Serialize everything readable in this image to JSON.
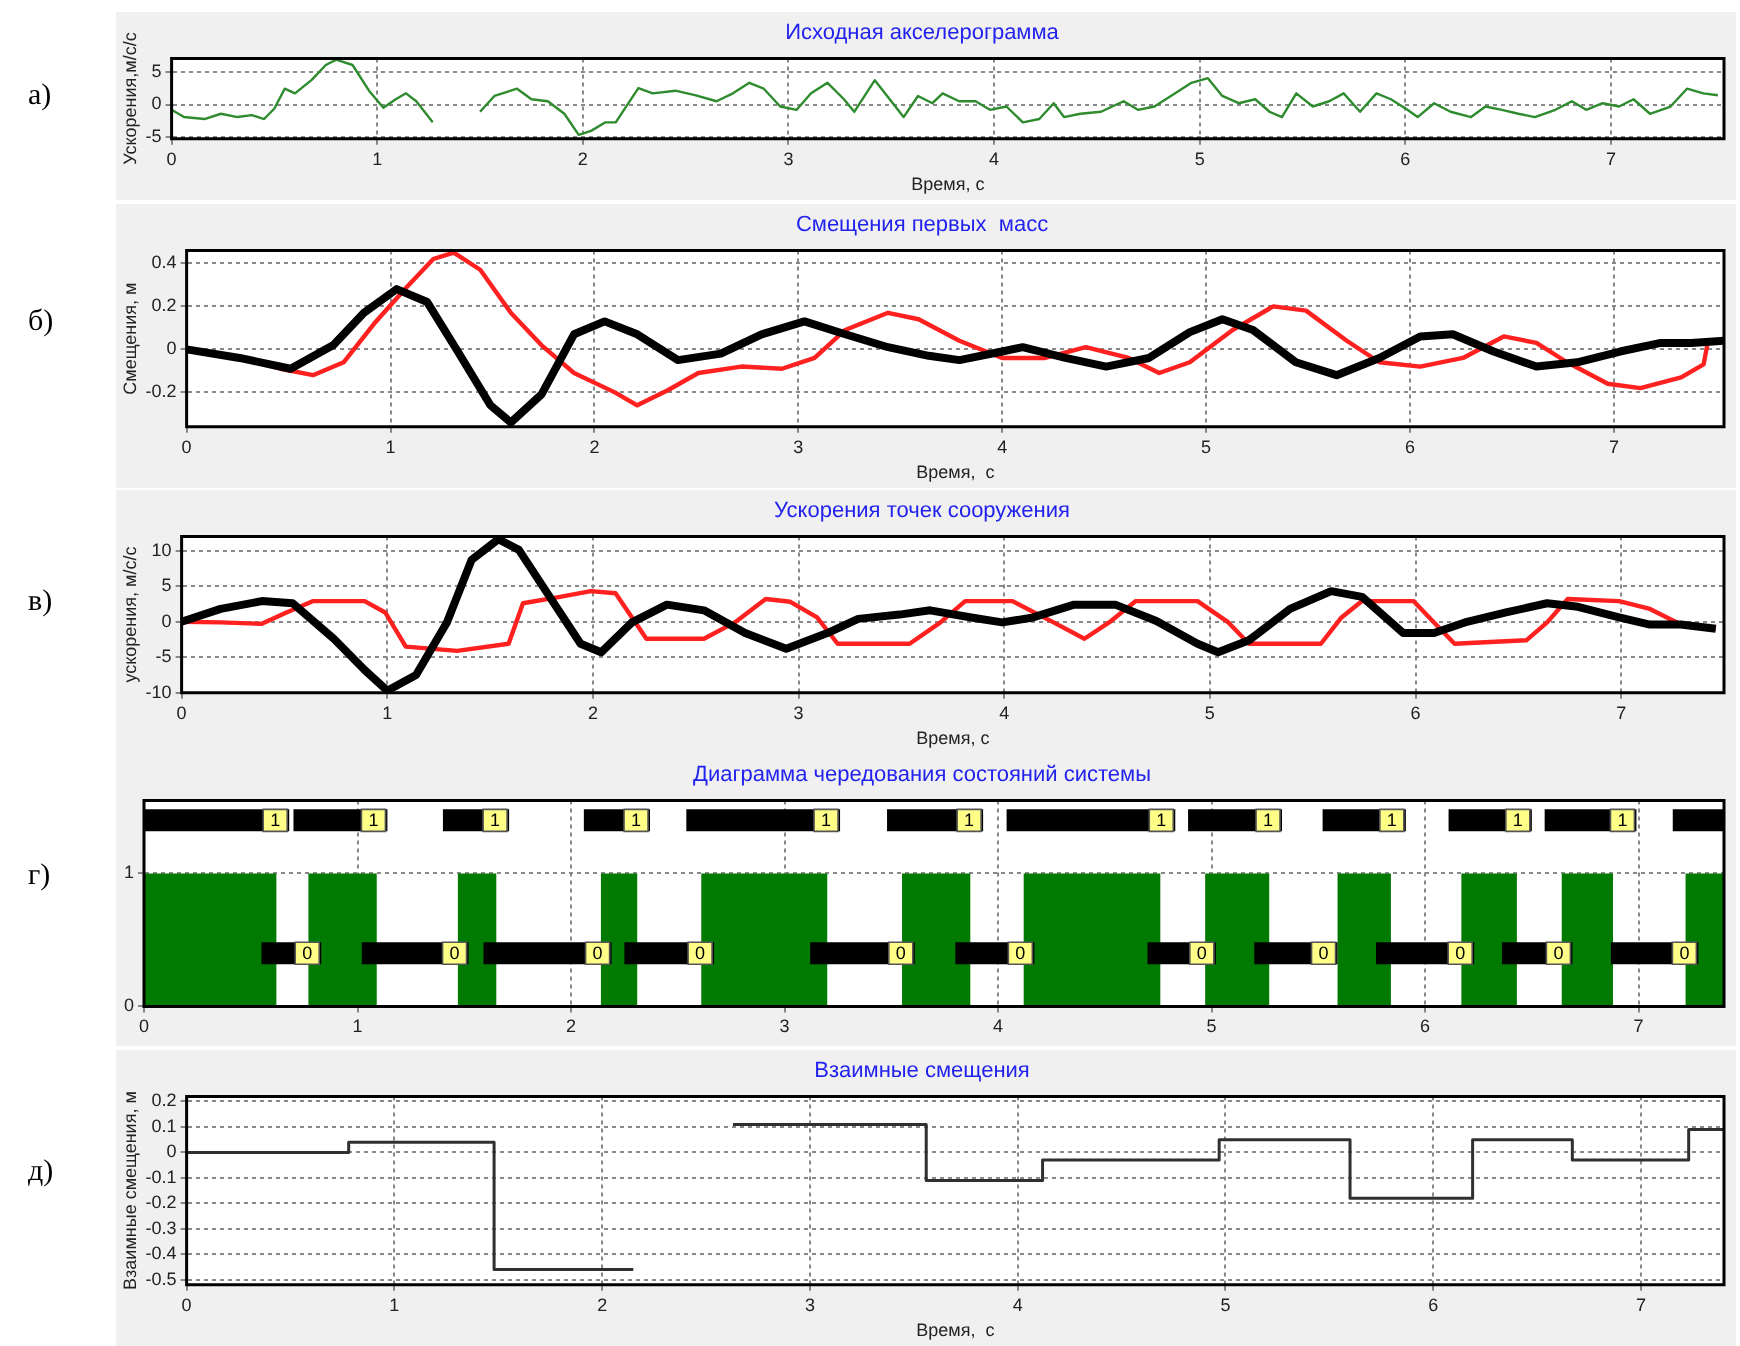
{
  "chart_data": [
    {
      "type": "line",
      "title": "Исходная акселерограмма",
      "xlabel": "Время, с",
      "ylabel": "Ускорения,м/с/с",
      "annotations": [
        "а)"
      ],
      "xlim": [
        0,
        7.55
      ],
      "ylim": [
        -5.2,
        7
      ],
      "xticks": [
        0,
        1,
        2,
        3,
        4,
        5,
        6,
        7
      ],
      "yticks": [
        -5,
        0,
        5
      ],
      "grid": true,
      "legend": false,
      "marker": "none",
      "series": [
        {
          "color": "#2e8b2e",
          "x": [
            0,
            0.06,
            0.16,
            0.24,
            0.32,
            0.39,
            0.45,
            0.5,
            0.55,
            0.6,
            0.68,
            0.75,
            0.8,
            0.88,
            0.96,
            1.03,
            1.09,
            1.14,
            1.19,
            1.27,
            1.32,
            1.45,
            1.5,
            1.57,
            1.68,
            1.75,
            1.83,
            1.91,
            1.98,
            2.04,
            2.11,
            2.16,
            2.27,
            2.34,
            2.45,
            2.55,
            2.65,
            2.73,
            2.81,
            2.88,
            2.96,
            3.04,
            3.11,
            3.19,
            3.27,
            3.32,
            3.42,
            3.5,
            3.56,
            3.63,
            3.7,
            3.75,
            3.83,
            3.91,
            3.98,
            4.06,
            4.14,
            4.22,
            4.29,
            4.34,
            4.42,
            4.52,
            4.63,
            4.7,
            4.78,
            4.86,
            4.96,
            5.04,
            5.11,
            5.19,
            5.27,
            5.34,
            5.4,
            5.47,
            5.55,
            5.63,
            5.7,
            5.78,
            5.86,
            5.93,
            6.01,
            6.06,
            6.14,
            6.22,
            6.32,
            6.39,
            6.47,
            6.55,
            6.63,
            6.73,
            6.81,
            6.88,
            6.96,
            7.04,
            7.11,
            7.19,
            7.29,
            7.37,
            7.45,
            7.52
          ],
          "values": [
            -0.8,
            -1.9,
            -2.2,
            -1.4,
            -1.9,
            -1.6,
            -2.2,
            -0.6,
            2.4,
            1.7,
            3.7,
            6,
            6.8,
            6,
            2.1,
            -0.5,
            0.8,
            1.7,
            0.5,
            -2.7,
            null,
            null,
            -1.1,
            1.3,
            2.4,
            0.8,
            0.5,
            -1.4,
            -4.6,
            -4,
            -2.7,
            -2.7,
            2.5,
            1.7,
            2.1,
            1.4,
            0.5,
            1.7,
            3.3,
            2.4,
            -0.3,
            -0.8,
            1.7,
            3.3,
            0.8,
            -1.1,
            3.7,
            0.5,
            -1.9,
            1.3,
            0.2,
            1.7,
            0.5,
            0.5,
            -0.8,
            -0.3,
            -2.7,
            -2.2,
            0.2,
            -1.9,
            -1.4,
            -1.1,
            0.5,
            -0.8,
            -0.3,
            1.3,
            3.3,
            4,
            1.3,
            0.2,
            0.8,
            -1.1,
            -1.9,
            1.7,
            -0.3,
            0.5,
            1.7,
            -1.1,
            1.7,
            0.8,
            -0.8,
            -1.9,
            0.2,
            -1.1,
            -1.9,
            -0.3,
            -0.8,
            -1.4,
            -1.9,
            -0.8,
            0.5,
            -0.8,
            0.2,
            -0.3,
            0.8,
            -1.4,
            -0.3,
            2.4,
            1.7,
            1.4
          ]
        }
      ]
    },
    {
      "type": "line",
      "title": "Смещения первых  масс",
      "xlabel": "Время,  с",
      "ylabel": "Смещения, м",
      "annotations": [
        "б)"
      ],
      "xlim": [
        0,
        7.54
      ],
      "ylim": [
        -0.36,
        0.46
      ],
      "xticks": [
        0,
        1,
        2,
        3,
        4,
        5,
        6,
        7
      ],
      "yticks": [
        -0.2,
        0,
        0.2,
        0.4
      ],
      "grid": true,
      "legend": false,
      "marker": "none",
      "series": [
        {
          "color": "#000000",
          "x": [
            0,
            0.26,
            0.51,
            0.72,
            0.87,
            1.03,
            1.18,
            1.33,
            1.49,
            1.59,
            1.74,
            1.9,
            2.05,
            2.21,
            2.41,
            2.62,
            2.82,
            3.03,
            3.23,
            3.44,
            3.64,
            3.79,
            4,
            4.1,
            4.31,
            4.51,
            4.72,
            4.92,
            5.08,
            5.23,
            5.44,
            5.64,
            5.85,
            6.05,
            6.21,
            6.41,
            6.62,
            6.82,
            7.03,
            7.23,
            7.38,
            7.54
          ],
          "values": [
            0,
            -0.04,
            -0.09,
            0.02,
            0.17,
            0.28,
            0.22,
            -0.01,
            -0.26,
            -0.34,
            -0.21,
            0.07,
            0.13,
            0.07,
            -0.05,
            -0.02,
            0.07,
            0.13,
            0.07,
            0.01,
            -0.03,
            -0.05,
            -0.01,
            0.01,
            -0.04,
            -0.08,
            -0.04,
            0.08,
            0.14,
            0.09,
            -0.06,
            -0.12,
            -0.04,
            0.06,
            0.07,
            -0.01,
            -0.08,
            -0.06,
            -0.01,
            0.03,
            0.03,
            0.04
          ]
        },
        {
          "color": "#ff2020",
          "x": [
            0,
            0.26,
            0.46,
            0.62,
            0.77,
            0.92,
            1.08,
            1.21,
            1.31,
            1.44,
            1.59,
            1.74,
            1.9,
            2.1,
            2.21,
            2.36,
            2.51,
            2.72,
            2.92,
            3.08,
            3.23,
            3.44,
            3.59,
            3.79,
            4,
            4.21,
            4.41,
            4.62,
            4.77,
            4.92,
            5.13,
            5.33,
            5.49,
            5.69,
            5.85,
            6.05,
            6.26,
            6.46,
            6.62,
            6.77,
            6.97,
            7.13,
            7.33,
            7.44,
            7.46
          ],
          "values": [
            0,
            -0.04,
            -0.09,
            -0.12,
            -0.06,
            0.12,
            0.29,
            0.42,
            0.45,
            0.37,
            0.17,
            0.02,
            -0.11,
            -0.2,
            -0.26,
            -0.19,
            -0.11,
            -0.08,
            -0.09,
            -0.04,
            0.09,
            0.17,
            0.14,
            0.04,
            -0.04,
            -0.04,
            0.01,
            -0.04,
            -0.11,
            -0.06,
            0.09,
            0.2,
            0.18,
            0.04,
            -0.06,
            -0.08,
            -0.04,
            0.06,
            0.03,
            -0.06,
            -0.16,
            -0.18,
            -0.13,
            -0.07,
            0.03
          ]
        }
      ]
    },
    {
      "type": "line",
      "title": "Ускорения точек сооружения",
      "xlabel": "Время, с",
      "ylabel": "ускорения, м/с/с",
      "annotations": [
        "в)"
      ],
      "xlim": [
        0,
        7.5
      ],
      "ylim": [
        -10,
        12
      ],
      "xticks": [
        0,
        1,
        2,
        3,
        4,
        5,
        6,
        7
      ],
      "yticks": [
        -10,
        -5,
        0,
        5,
        10
      ],
      "grid": true,
      "legend": false,
      "marker": "none",
      "series": [
        {
          "color": "#000000",
          "x": [
            0,
            0.19,
            0.39,
            0.54,
            0.74,
            0.89,
            1,
            1.14,
            1.29,
            1.41,
            1.54,
            1.64,
            1.79,
            1.94,
            2.04,
            2.19,
            2.36,
            2.54,
            2.74,
            2.94,
            3.14,
            3.29,
            3.49,
            3.64,
            3.84,
            3.99,
            4.14,
            4.34,
            4.54,
            4.74,
            4.94,
            5.04,
            5.19,
            5.39,
            5.59,
            5.74,
            5.94,
            6.09,
            6.24,
            6.44,
            6.64,
            6.79,
            6.99,
            7.14,
            7.29,
            7.46
          ],
          "values": [
            0,
            1.8,
            2.9,
            2.6,
            -2.4,
            -6.8,
            -9.7,
            -7.5,
            -0.1,
            8.7,
            11.6,
            10.1,
            3.5,
            -3.1,
            -4.3,
            -0.1,
            2.4,
            1.6,
            -1.6,
            -3.8,
            -1.6,
            0.4,
            1,
            1.6,
            0.6,
            -0.1,
            0.6,
            2.4,
            2.4,
            0.1,
            -3.1,
            -4.3,
            -2.6,
            1.8,
            4.3,
            3.5,
            -1.6,
            -1.6,
            -0.1,
            1.3,
            2.6,
            2.1,
            0.6,
            -0.4,
            -0.4,
            -1
          ]
        },
        {
          "color": "#ff2020",
          "x": [
            0,
            0.19,
            0.39,
            0.51,
            0.64,
            0.89,
            0.99,
            1.09,
            1.34,
            1.59,
            1.66,
            1.84,
            1.99,
            2.11,
            2.26,
            2.54,
            2.69,
            2.84,
            2.96,
            3.09,
            3.19,
            3.54,
            3.69,
            3.81,
            4.04,
            4.24,
            4.39,
            4.51,
            4.64,
            4.94,
            5.09,
            5.19,
            5.54,
            5.64,
            5.74,
            5.99,
            6.09,
            6.19,
            6.54,
            6.64,
            6.74,
            6.99,
            7.14,
            7.29,
            7.46
          ],
          "values": [
            0,
            -0.1,
            -0.3,
            1.3,
            2.9,
            2.9,
            1.3,
            -3.5,
            -4.1,
            -3.1,
            2.6,
            3.5,
            4.3,
            4,
            -2.4,
            -2.4,
            -0.1,
            3.2,
            2.8,
            0.6,
            -3.1,
            -3.1,
            -0.1,
            2.9,
            2.9,
            -0.1,
            -2.4,
            -0.1,
            2.9,
            2.9,
            -0.1,
            -3.1,
            -3.1,
            0.6,
            2.9,
            2.9,
            -0.1,
            -3.1,
            -2.6,
            -0.1,
            3.2,
            2.9,
            1.8,
            -0.4,
            -1
          ]
        }
      ]
    },
    {
      "type": "area",
      "title": "Диаграмма чередования состояний системы",
      "annotations": [
        "г)"
      ],
      "xlim": [
        0,
        7.4
      ],
      "ylim": [
        0,
        1.55
      ],
      "xticks": [
        0,
        1,
        2,
        3,
        4,
        5,
        6,
        7
      ],
      "yticks": [
        0,
        1
      ],
      "grid": true,
      "legend": false,
      "marker": "none",
      "series": [
        {
          "type": "line",
          "color": "#000000",
          "x": [
            0,
            0.68,
            0.69,
            0.7,
            1.14,
            1.27,
            1.4,
            1.71,
            1.88,
            2.06,
            2.37,
            2.45,
            2.54,
            3.26,
            3.37,
            3.48,
            3.93,
            3.98,
            4.04,
            4.83,
            4.86,
            4.89,
            5.33,
            5.42,
            5.52,
            5.91,
            6.01,
            6.11,
            6.5,
            6.53,
            6.56,
            6.99,
            7.07,
            7.16,
            7.4
          ],
          "values": [
            1.4,
            1.4,
            null,
            1.4,
            1.4,
            null,
            1.4,
            1.4,
            null,
            1.4,
            1.4,
            null,
            1.4,
            1.4,
            null,
            1.4,
            1.4,
            null,
            1.4,
            1.4,
            null,
            1.4,
            1.4,
            null,
            1.4,
            1.4,
            null,
            1.4,
            1.4,
            null,
            1.4,
            1.4,
            null,
            1.4,
            1.4
          ],
          "value_labels": [
            null,
            "1",
            null,
            null,
            "1",
            null,
            null,
            "1",
            null,
            null,
            "1",
            null,
            null,
            "1",
            null,
            null,
            "1",
            null,
            null,
            "1",
            null,
            null,
            "1",
            null,
            null,
            "1",
            null,
            null,
            "1",
            null,
            null,
            "1",
            null,
            null,
            null
          ]
        },
        {
          "type": "line",
          "color": "#000000",
          "x": [
            0.55,
            0.83,
            0.92,
            1.02,
            1.52,
            1.55,
            1.59,
            2.19,
            2.22,
            2.25,
            2.67,
            2.9,
            3.12,
            3.61,
            3.7,
            3.8,
            4.17,
            4.4,
            4.7,
            5.02,
            5.1,
            5.2,
            5.59,
            5.68,
            5.77,
            6.23,
            6.3,
            6.36,
            6.69,
            6.78,
            6.87,
            7.28
          ],
          "values": [
            0.4,
            0.4,
            null,
            0.4,
            0.4,
            null,
            0.4,
            0.4,
            null,
            0.4,
            0.4,
            null,
            0.4,
            0.4,
            null,
            0.4,
            0.4,
            null,
            0.4,
            0.4,
            null,
            0.4,
            0.4,
            null,
            0.4,
            0.4,
            null,
            0.4,
            0.4,
            null,
            0.4,
            0.4
          ],
          "value_labels": [
            null,
            "0",
            null,
            null,
            "0",
            null,
            null,
            "0",
            null,
            null,
            "0",
            null,
            null,
            "0",
            null,
            null,
            "0",
            null,
            null,
            "0",
            null,
            null,
            "0",
            null,
            null,
            "0",
            null,
            null,
            "0",
            null,
            null,
            "0"
          ]
        },
        {
          "color": "#007a00",
          "x": [
            0,
            0.62,
            0.62,
            0.77,
            0.77,
            1.09,
            1.09,
            1.47,
            1.47,
            1.65,
            1.65,
            2.14,
            2.14,
            2.31,
            2.31,
            2.61,
            2.61,
            3.2,
            3.2,
            3.55,
            3.55,
            3.87,
            3.87,
            4.12,
            4.12,
            4.76,
            4.76,
            4.97,
            4.97,
            5.27,
            5.27,
            5.59,
            5.59,
            5.84,
            5.84,
            6.17,
            6.17,
            6.43,
            6.43,
            6.64,
            6.64,
            6.88,
            6.88,
            7.22,
            7.22,
            7.4
          ],
          "values": [
            1,
            1,
            0,
            0,
            1,
            1,
            0,
            0,
            1,
            1,
            0,
            0,
            1,
            1,
            0,
            0,
            1,
            1,
            0,
            0,
            1,
            1,
            0,
            0,
            1,
            1,
            0,
            0,
            1,
            1,
            0,
            0,
            1,
            1,
            0,
            0,
            1,
            1,
            0,
            0,
            1,
            1,
            0,
            0,
            1,
            1
          ]
        }
      ]
    },
    {
      "type": "step",
      "title": "Взаимные смещения",
      "xlabel": "Время,  с",
      "ylabel": "Взаимные смещения, м",
      "annotations": [
        "д)"
      ],
      "xlim": [
        0,
        7.4
      ],
      "ylim": [
        -0.52,
        0.22
      ],
      "xticks": [
        0,
        1,
        2,
        3,
        4,
        5,
        6,
        7
      ],
      "yticks": [
        -0.5,
        -0.4,
        -0.3,
        -0.2,
        -0.1,
        0,
        0.1,
        0.2
      ],
      "grid": true,
      "legend": false,
      "marker": "none",
      "series": [
        {
          "color": "#303030",
          "x": [
            0,
            0.78,
            1.48,
            2.15,
            2.16,
            2.63,
            3.56,
            4.12,
            4.97,
            5.6,
            6.19,
            6.67,
            7.23,
            7.4
          ],
          "values": [
            0,
            0.04,
            -0.46,
            -0.46,
            null,
            0.11,
            -0.11,
            -0.03,
            0.05,
            -0.18,
            0.05,
            -0.03,
            0.09,
            0.09
          ]
        }
      ]
    }
  ]
}
